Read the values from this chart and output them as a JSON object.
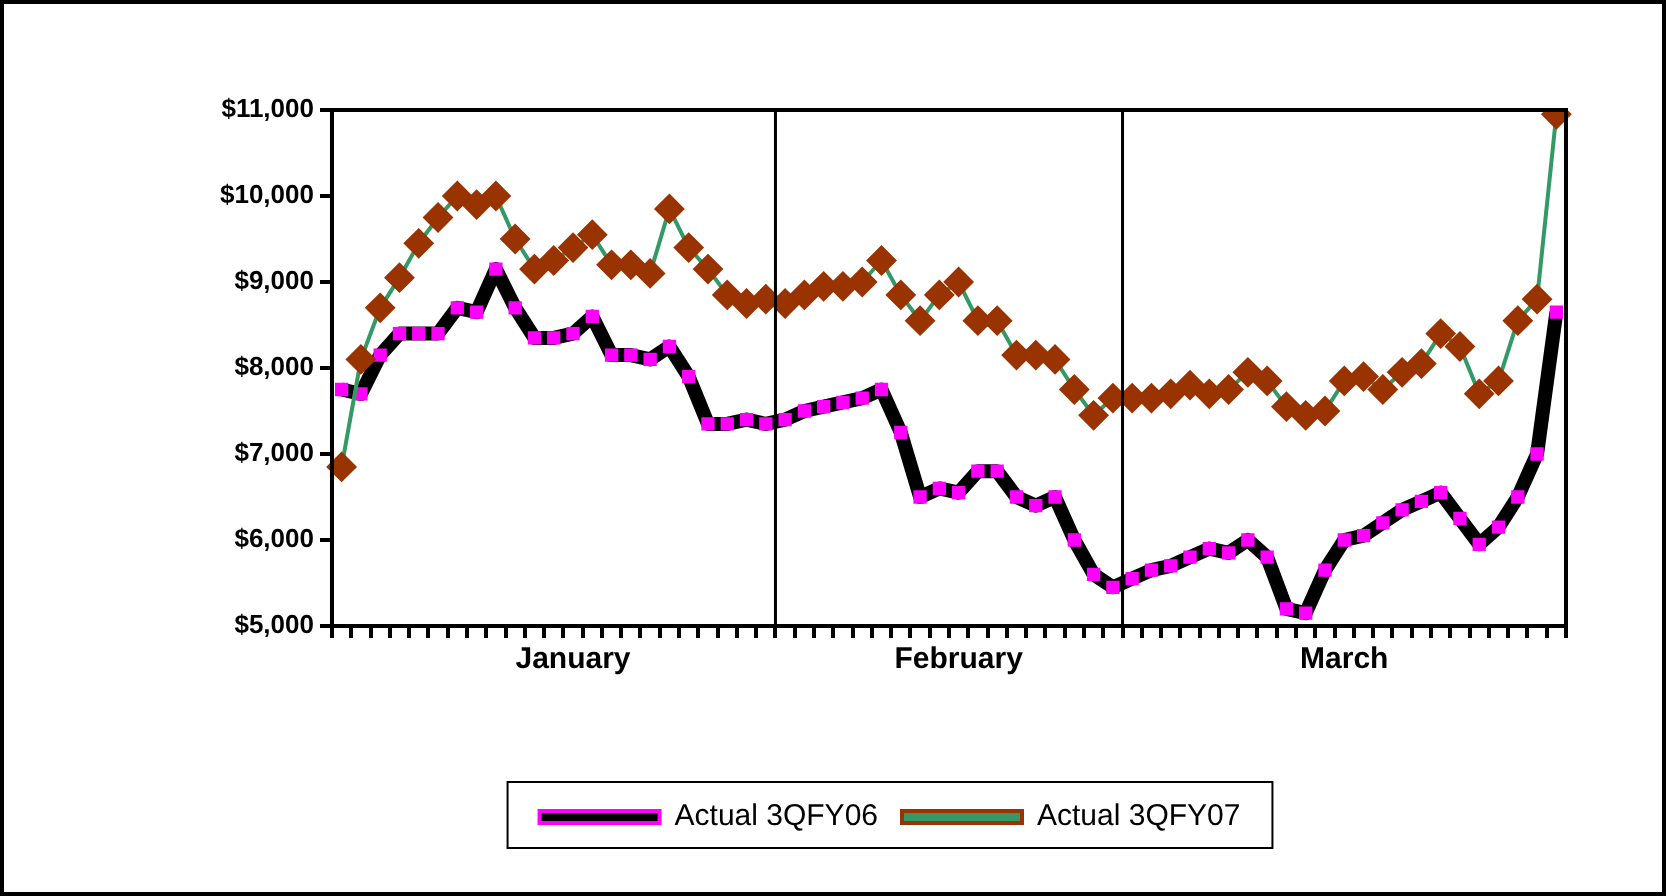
{
  "chart_data": {
    "type": "line",
    "categories": [
      null,
      null,
      null,
      null,
      null,
      null,
      null,
      null,
      null,
      null,
      null,
      null,
      "January",
      null,
      null,
      null,
      null,
      null,
      null,
      null,
      null,
      null,
      null,
      null,
      null,
      null,
      null,
      null,
      null,
      null,
      null,
      null,
      "February",
      null,
      null,
      null,
      null,
      null,
      null,
      null,
      null,
      null,
      null,
      null,
      null,
      null,
      null,
      null,
      null,
      null,
      null,
      null,
      "March",
      null,
      null,
      null,
      null,
      null,
      null,
      null,
      null,
      null,
      null,
      null
    ],
    "series": [
      {
        "name": "Actual 3QFY06",
        "color": "#ff00ff",
        "marker": "square",
        "values": [
          7750,
          7700,
          8150,
          8400,
          8400,
          8400,
          8700,
          8650,
          9150,
          8700,
          8350,
          8350,
          8400,
          8600,
          8150,
          8150,
          8100,
          8250,
          7900,
          7350,
          7350,
          7400,
          7350,
          7400,
          7500,
          7550,
          7600,
          7650,
          7750,
          7250,
          6500,
          6600,
          6550,
          6800,
          6800,
          6500,
          6400,
          6500,
          6000,
          5600,
          5450,
          5550,
          5650,
          5700,
          5800,
          5900,
          5850,
          6000,
          5800,
          5200,
          5150,
          5650,
          6000,
          6050,
          6200,
          6350,
          6450,
          6550,
          6250,
          5950,
          6150,
          6500,
          7000,
          8650
        ]
      },
      {
        "name": "Actual 3QFY07",
        "color": "#993300",
        "marker": "diamond",
        "values": [
          6850,
          8100,
          8700,
          9050,
          9450,
          9750,
          10000,
          9900,
          10000,
          9500,
          9150,
          9250,
          9400,
          9550,
          9200,
          9200,
          9100,
          9850,
          9400,
          9150,
          8850,
          8750,
          8800,
          8750,
          8850,
          8950,
          8950,
          9000,
          9250,
          8850,
          8550,
          8850,
          9000,
          8550,
          8550,
          8150,
          8150,
          8100,
          7750,
          7450,
          7650,
          7650,
          7650,
          7700,
          7800,
          7700,
          7750,
          7950,
          7850,
          7550,
          7450,
          7500,
          7850,
          7900,
          7750,
          7950,
          8050,
          8400,
          8250,
          7700,
          7850,
          8550,
          8800,
          10950
        ]
      }
    ],
    "ylim": [
      5000,
      11000
    ],
    "yticks": [
      {
        "value": 5000,
        "label": "$5,000"
      },
      {
        "value": 6000,
        "label": "$6,000"
      },
      {
        "value": 7000,
        "label": "$7,000"
      },
      {
        "value": 8000,
        "label": "$8,000"
      },
      {
        "value": 9000,
        "label": "$9,000"
      },
      {
        "value": 10000,
        "label": "$10,000"
      },
      {
        "value": 11000,
        "label": "$11,000"
      }
    ],
    "grid": false,
    "legend": "bottom"
  }
}
